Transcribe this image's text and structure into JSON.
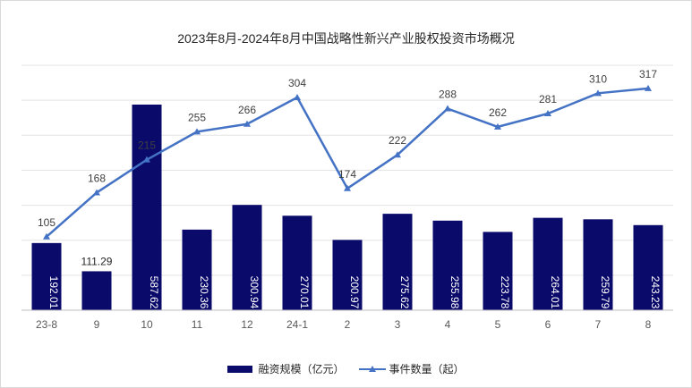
{
  "title": "2023年8月-2024年8月中国战略性新兴产业股权投资市场概况",
  "colors": {
    "bar": "#0a0a6b",
    "line": "#4472c4",
    "grid": "#e3e3e3",
    "axis": "#bfbfbf",
    "text": "#595959"
  },
  "legend": {
    "bar_label": "融资规模（亿元）",
    "line_label": "事件数量（起）"
  },
  "chart_data": {
    "type": "bar",
    "categories": [
      "23-8",
      "9",
      "10",
      "11",
      "12",
      "24-1",
      "2",
      "3",
      "4",
      "5",
      "6",
      "7",
      "8"
    ],
    "series": [
      {
        "name": "融资规模（亿元）",
        "type": "bar",
        "values": [
          192.01,
          111.29,
          587.62,
          230.36,
          300.94,
          270.01,
          200.97,
          275.62,
          255.98,
          223.78,
          264.01,
          259.79,
          243.23
        ],
        "labels": [
          "192.01",
          "111.29",
          "587.62",
          "230.36",
          "300.94",
          "270.01",
          "200.97",
          "275.62",
          "255.98",
          "223.78",
          "264.01",
          "259.79",
          "243.23"
        ]
      },
      {
        "name": "事件数量（起）",
        "type": "line",
        "values": [
          105,
          168,
          215,
          255,
          266,
          304,
          174,
          222,
          288,
          262,
          281,
          310,
          317
        ]
      }
    ],
    "bar_ylim": [
      0,
      700
    ],
    "line_ylim": [
      0,
      350
    ],
    "grid": true,
    "legend_position": "bottom"
  }
}
